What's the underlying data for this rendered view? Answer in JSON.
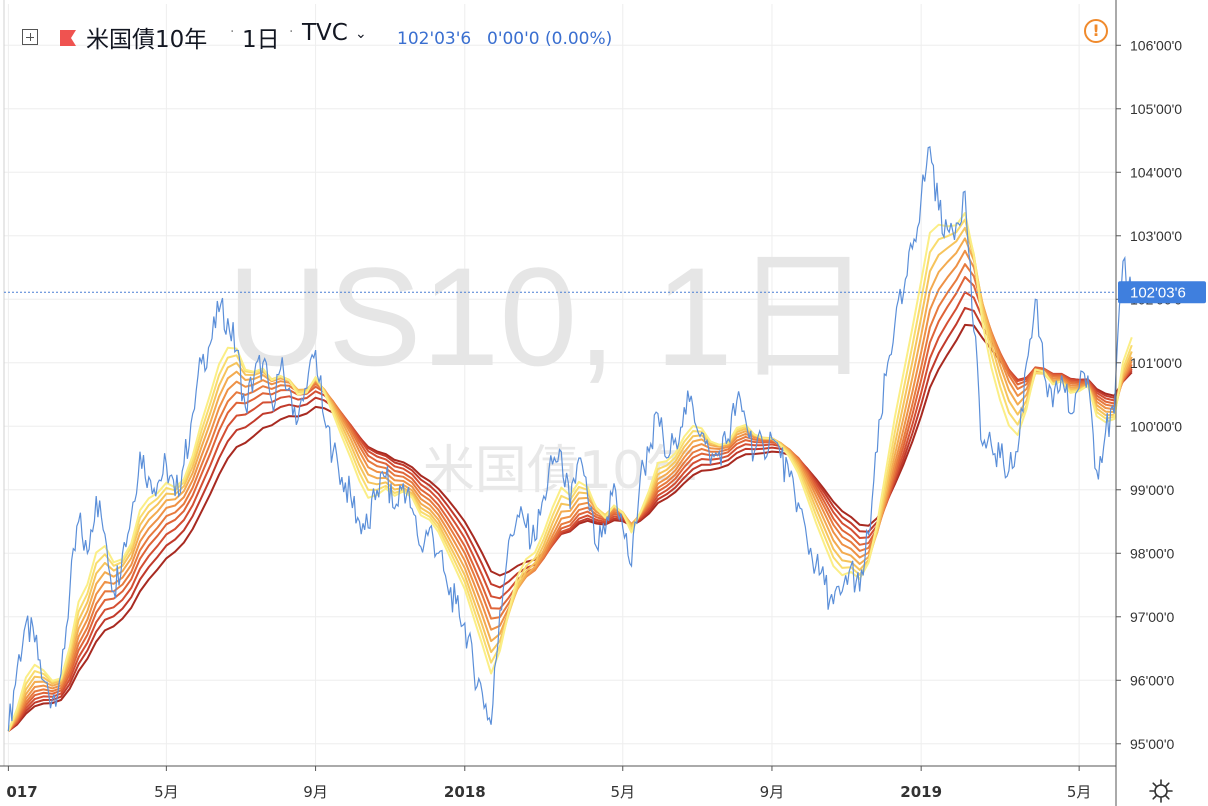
{
  "legend": {
    "symbol": "米国債10年",
    "interval": "1日",
    "exchange": "TVC",
    "price": "102'03'6",
    "change": "0'00'0 (0.00%)"
  },
  "watermark": {
    "main": "US10, 1日",
    "sub": "米国債10年"
  },
  "last_price_label": "102'03'6",
  "colors": {
    "price_line": "#5b8fd9",
    "last_price_line": "#4a7fd4",
    "ribbon": [
      "#fbee86",
      "#f9dc6e",
      "#f6c45c",
      "#f3ab50",
      "#ee9146",
      "#e77a3e",
      "#df6438",
      "#d44f33",
      "#c13a2b",
      "#a82a21"
    ],
    "alert": "#f08a2c"
  },
  "icons": {
    "expand": "plus-square-icon",
    "flag": "red-flag-icon",
    "caret": "chevron-down-icon",
    "alert": "alert-circle-icon",
    "settings": "gear-icon"
  },
  "chart_data": {
    "type": "line",
    "title": "US10, 1日",
    "ylim": [
      94.65,
      106.65
    ],
    "y_ticks": [
      "95'00'0",
      "96'00'0",
      "97'00'0",
      "98'00'0",
      "99'00'0",
      "100'00'0",
      "101'00'0",
      "102'00'0",
      "103'00'0",
      "104'00'0",
      "105'00'0",
      "106'00'0"
    ],
    "x_ticks": [
      {
        "label": "017",
        "week": 0
      },
      {
        "label": "5月",
        "week": 18
      },
      {
        "label": "9月",
        "week": 35
      },
      {
        "label": "2018",
        "week": 52
      },
      {
        "label": "5月",
        "week": 70
      },
      {
        "label": "9月",
        "week": 87
      },
      {
        "label": "2019",
        "week": 104
      },
      {
        "label": "5月",
        "week": 122
      }
    ],
    "x_range_weeks": [
      -0.5,
      126.2
    ],
    "last_price": 102.11,
    "series": [
      {
        "name": "米国債10年",
        "role": "price",
        "values": [
          95.2,
          96.2,
          96.9,
          96.6,
          96.0,
          95.7,
          96.1,
          97.4,
          98.5,
          98.0,
          98.9,
          98.3,
          97.4,
          98.0,
          98.6,
          99.6,
          99.2,
          99.1,
          99.4,
          98.9,
          99.4,
          100.2,
          101.0,
          101.3,
          101.8,
          101.7,
          101.2,
          100.3,
          100.8,
          101.0,
          100.4,
          100.9,
          100.6,
          100.1,
          100.6,
          101.2,
          100.1,
          99.6,
          99.2,
          98.9,
          98.5,
          98.4,
          99.0,
          99.2,
          98.7,
          99.1,
          98.7,
          98.1,
          98.4,
          98.0,
          97.5,
          97.2,
          96.9,
          96.2,
          95.8,
          95.3,
          97.1,
          98.2,
          98.6,
          98.4,
          98.2,
          98.9,
          99.4,
          99.6,
          98.7,
          99.5,
          98.9,
          98.1,
          98.3,
          99.1,
          98.4,
          97.8,
          99.2,
          99.6,
          100.2,
          99.5,
          99.8,
          100.3,
          100.3,
          99.9,
          99.4,
          99.6,
          99.8,
          100.4,
          100.1,
          99.6,
          99.7,
          99.8,
          99.5,
          99.2,
          98.8,
          98.2,
          97.8,
          97.5,
          97.2,
          97.4,
          97.8,
          97.4,
          98.3,
          99.6,
          100.8,
          101.6,
          102.1,
          102.8,
          103.6,
          104.4,
          103.4,
          103.1,
          103.2,
          103.7,
          101.5,
          99.7,
          99.7,
          99.5,
          99.3,
          99.6,
          101.0,
          102.0,
          100.8,
          100.3,
          100.8,
          100.2,
          100.6,
          100.8,
          99.3,
          99.9,
          100.2,
          102.6,
          102.1
        ]
      }
    ]
  }
}
